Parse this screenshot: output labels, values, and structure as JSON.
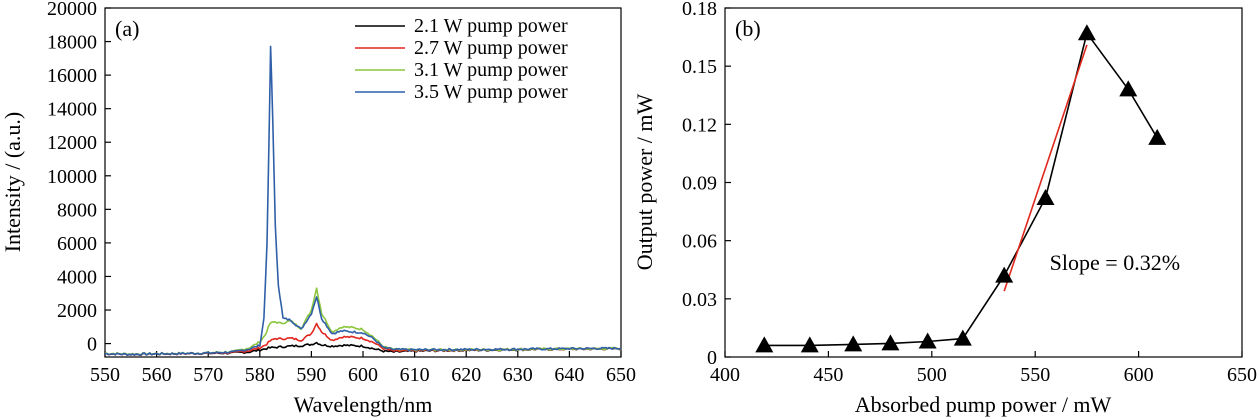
{
  "chart_data": [
    {
      "type": "line",
      "panel_label": "(a)",
      "xlabel": "Wavelength/nm",
      "ylabel": "Intensity / (a.u.)",
      "xlim": [
        550,
        650
      ],
      "ylim": [
        -800,
        20000
      ],
      "xticks": [
        550,
        560,
        570,
        580,
        590,
        600,
        610,
        620,
        630,
        640,
        650
      ],
      "yticks": [
        0,
        2000,
        4000,
        6000,
        8000,
        10000,
        12000,
        14000,
        16000,
        18000,
        20000
      ],
      "legend_position": "top-right",
      "series": [
        {
          "name": "2.1 W pump power",
          "color": "#000000",
          "x": [
            550,
            555,
            560,
            565,
            570,
            575,
            578,
            580,
            582,
            584,
            586,
            588,
            590,
            591,
            592,
            594,
            596,
            598,
            600,
            602,
            604,
            606,
            610,
            615,
            620,
            625,
            630,
            635,
            640,
            645,
            650
          ],
          "y": [
            -600,
            -650,
            -620,
            -600,
            -580,
            -560,
            -500,
            -380,
            -250,
            -200,
            -150,
            -120,
            -50,
            60,
            -80,
            -150,
            -100,
            -120,
            -150,
            -300,
            -450,
            -500,
            -450,
            -420,
            -400,
            -380,
            -360,
            -340,
            -330,
            -320,
            -300
          ]
        },
        {
          "name": "2.7 W pump power",
          "color": "#e0281e",
          "x": [
            550,
            555,
            560,
            565,
            570,
            575,
            578,
            580,
            581,
            582,
            583,
            584,
            586,
            588,
            590,
            591,
            592,
            594,
            596,
            598,
            600,
            602,
            604,
            606,
            610,
            615,
            620,
            625,
            630,
            635,
            640,
            645,
            650
          ],
          "y": [
            -600,
            -640,
            -610,
            -600,
            -570,
            -540,
            -420,
            -250,
            -100,
            150,
            300,
            280,
            320,
            200,
            600,
            1200,
            700,
            200,
            400,
            380,
            320,
            80,
            -300,
            -450,
            -420,
            -400,
            -380,
            -360,
            -340,
            -330,
            -320,
            -310,
            -300
          ]
        },
        {
          "name": "3.1 W pump power",
          "color": "#8cc63e",
          "x": [
            550,
            555,
            560,
            565,
            570,
            575,
            578,
            580,
            581,
            582,
            583,
            584,
            586,
            588,
            590,
            591,
            592,
            594,
            596,
            598,
            600,
            602,
            604,
            606,
            610,
            615,
            620,
            625,
            630,
            635,
            640,
            645,
            650
          ],
          "y": [
            -580,
            -620,
            -600,
            -580,
            -550,
            -480,
            -250,
            100,
            500,
            1200,
            1300,
            1200,
            1350,
            900,
            2000,
            3300,
            1800,
            700,
            1000,
            950,
            850,
            400,
            -200,
            -350,
            -380,
            -370,
            -360,
            -350,
            -340,
            -320,
            -310,
            -300,
            -290
          ]
        },
        {
          "name": "3.5 W pump power",
          "color": "#2f5fa8",
          "x": [
            550,
            555,
            560,
            565,
            570,
            575,
            578,
            580,
            580.8,
            581.4,
            581.8,
            582.1,
            582.5,
            583,
            583.6,
            584.5,
            586,
            588,
            590,
            591,
            592,
            594,
            596,
            598,
            600,
            602,
            604,
            606,
            610,
            615,
            620,
            625,
            630,
            635,
            640,
            645,
            650
          ],
          "y": [
            -600,
            -640,
            -610,
            -590,
            -560,
            -500,
            -320,
            -100,
            1500,
            6000,
            12500,
            17700,
            13500,
            7000,
            3500,
            1500,
            1400,
            850,
            1800,
            2800,
            1500,
            600,
            750,
            700,
            650,
            300,
            -250,
            -350,
            -370,
            -360,
            -350,
            -340,
            -330,
            -320,
            -300,
            -290,
            -280
          ]
        }
      ]
    },
    {
      "type": "scatter",
      "panel_label": "(b)",
      "xlabel": "Absorbed pump power / mW",
      "ylabel": "Output power / mW",
      "xlim": [
        400,
        650
      ],
      "ylim": [
        0,
        0.18
      ],
      "xticks": [
        400,
        450,
        500,
        550,
        600,
        650
      ],
      "yticks": [
        0,
        0.03,
        0.06,
        0.09,
        0.12,
        0.15,
        0.18
      ],
      "ytick_labels": [
        "0",
        "0.03",
        "0.06",
        "0.09",
        "0.12",
        "0.15",
        "0.18"
      ],
      "marker": "triangle",
      "connected": true,
      "series": [
        {
          "color": "#000000",
          "x": [
            419,
            441,
            462,
            480,
            498,
            515,
            535,
            555,
            575,
            595,
            609
          ],
          "y": [
            0.006,
            0.006,
            0.0065,
            0.007,
            0.008,
            0.0095,
            0.042,
            0.082,
            0.167,
            0.138,
            0.113
          ]
        }
      ],
      "fit_line": {
        "color": "#e0281e",
        "x": [
          535,
          575
        ],
        "y": [
          0.034,
          0.161
        ]
      },
      "annotation": {
        "text": "Slope = 0.32%",
        "x": 557,
        "y": 0.045
      }
    }
  ]
}
